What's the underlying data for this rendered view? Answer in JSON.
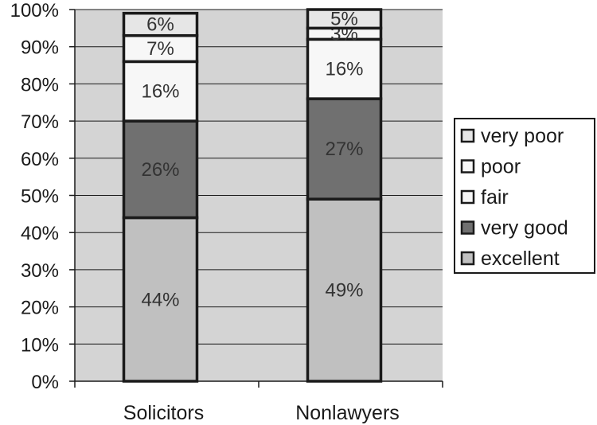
{
  "chart_data": {
    "type": "bar",
    "stacked": true,
    "categories": [
      "Solicitors",
      "Nonlawyers"
    ],
    "series": [
      {
        "name": "excellent",
        "values": [
          44,
          49
        ],
        "labels": [
          "44%",
          "49%"
        ],
        "color": "#c0c0c0"
      },
      {
        "name": "very good",
        "values": [
          26,
          27
        ],
        "labels": [
          "26%",
          "27%"
        ],
        "color": "#707070"
      },
      {
        "name": "fair",
        "values": [
          16,
          16
        ],
        "labels": [
          "16%",
          "16%"
        ],
        "color": "#f7f7f7"
      },
      {
        "name": "poor",
        "values": [
          7,
          3
        ],
        "labels": [
          "7%",
          "3%"
        ],
        "color": "#f7f7f7"
      },
      {
        "name": "very poor",
        "values": [
          6,
          5
        ],
        "labels": [
          "6%",
          "5%"
        ],
        "color": "#e6e6e6"
      }
    ],
    "yticks": [
      "0%",
      "10%",
      "20%",
      "30%",
      "40%",
      "50%",
      "60%",
      "70%",
      "80%",
      "90%",
      "100%"
    ],
    "ylim": [
      0,
      100
    ],
    "grid": true,
    "plot_background": "#d4d4d4",
    "legend_position": "right",
    "legend_order": [
      "very poor",
      "poor",
      "fair",
      "very good",
      "excellent"
    ],
    "title": "",
    "xlabel": "",
    "ylabel": ""
  }
}
